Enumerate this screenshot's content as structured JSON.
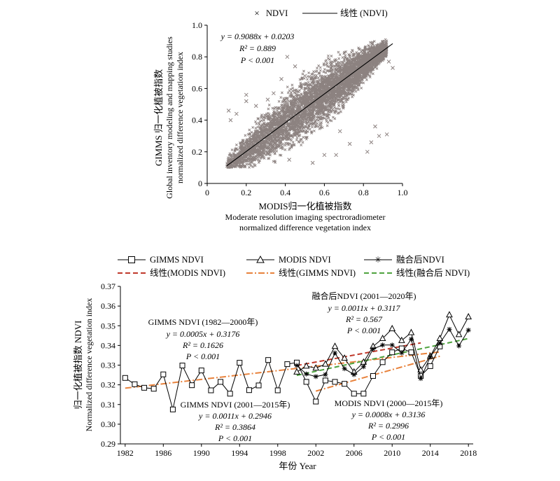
{
  "chart_data": [
    {
      "type": "scatter",
      "legend": {
        "placement": "top-center",
        "entries": [
          "NDVI",
          "线性 (NDVI)"
        ]
      },
      "xlabel": [
        "MODIS归一化植被指数",
        "Moderate resolution imaging spectroradiometer",
        "normalized difference vegetation index"
      ],
      "ylabel": [
        "GIMMS 归一化植被指数",
        "Global inventory modeling and mapping studies",
        "normalized difference vegetation index"
      ],
      "xlim": [
        0,
        1.0
      ],
      "ylim": [
        0,
        1.0
      ],
      "xticks": [
        {
          "v": 0,
          "label": "0"
        },
        {
          "v": 0.2,
          "label": "0.2"
        },
        {
          "v": 0.4,
          "label": "0.4"
        },
        {
          "v": 0.6,
          "label": "0.6"
        },
        {
          "v": 0.8,
          "label": "0.8"
        },
        {
          "v": 1.0,
          "label": "1.0"
        }
      ],
      "yticks": [
        {
          "v": 0,
          "label": "0"
        },
        {
          "v": 0.2,
          "label": "0.2"
        },
        {
          "v": 0.4,
          "label": "0.4"
        },
        {
          "v": 0.6,
          "label": "0.6"
        },
        {
          "v": 0.8,
          "label": "0.8"
        },
        {
          "v": 1.0,
          "label": "1.0"
        }
      ],
      "fit": {
        "slope": 0.9088,
        "intercept": 0.0203,
        "x_range": [
          0.1,
          0.95
        ]
      },
      "annotations": [
        "y = 0.9088x + 0.0203",
        "R² = 0.889",
        "P < 0.001"
      ],
      "marker_color": "#8c8280",
      "outliers": [
        [
          0.92,
          0.31
        ],
        [
          0.95,
          0.73
        ],
        [
          0.93,
          0.77
        ],
        [
          0.82,
          0.2
        ],
        [
          0.68,
          0.33
        ],
        [
          0.56,
          0.6
        ],
        [
          0.34,
          0.57
        ],
        [
          0.2,
          0.56
        ],
        [
          0.31,
          0.53
        ],
        [
          0.25,
          0.49
        ],
        [
          0.2,
          0.52
        ],
        [
          0.45,
          0.74
        ],
        [
          0.42,
          0.15
        ],
        [
          0.6,
          0.18
        ],
        [
          0.54,
          0.13
        ],
        [
          0.73,
          0.25
        ],
        [
          0.66,
          0.18
        ],
        [
          0.84,
          0.26
        ],
        [
          0.86,
          0.36
        ],
        [
          0.15,
          0.44
        ],
        [
          0.11,
          0.46
        ],
        [
          0.12,
          0.4
        ],
        [
          0.5,
          0.68
        ],
        [
          0.41,
          0.8
        ],
        [
          0.38,
          0.66
        ],
        [
          0.88,
          0.3
        ]
      ]
    },
    {
      "type": "line",
      "legend": {
        "placement": "top",
        "entries": [
          "GIMMS NDVI",
          "MODIS NDVI",
          "融合后NDVI",
          "线性(MODIS NDVI)",
          "线性(GIMMS NDVI)",
          "线性(融合后 NDVI)"
        ]
      },
      "xlabel": "年份 Year",
      "ylabel": [
        "归一化植被指数 NDVI",
        "Normalized difference vegetation index"
      ],
      "xlim": [
        1981.5,
        2018.5
      ],
      "ylim": [
        0.29,
        0.37
      ],
      "xticks": [
        1982,
        1986,
        1990,
        1994,
        1998,
        2002,
        2006,
        2010,
        2014,
        2018
      ],
      "yticks": [
        "0.29",
        "0.30",
        "0.31",
        "0.32",
        "0.33",
        "0.34",
        "0.35",
        "0.36",
        "0.37"
      ],
      "series": [
        {
          "name": "GIMMS NDVI",
          "x": [
            1982,
            1983,
            1984,
            1985,
            1986,
            1987,
            1988,
            1989,
            1990,
            1991,
            1992,
            1993,
            1994,
            1995,
            1996,
            1997,
            1998,
            1999,
            2000,
            2001,
            2002,
            2003,
            2004,
            2005,
            2006,
            2007,
            2008,
            2009,
            2010,
            2011,
            2012,
            2013,
            2014,
            2015
          ],
          "y": [
            0.3235,
            0.3203,
            0.3185,
            0.318,
            0.3253,
            0.3075,
            0.3298,
            0.3198,
            0.3273,
            0.3172,
            0.3215,
            0.3155,
            0.3312,
            0.3173,
            0.3197,
            0.3326,
            0.3172,
            0.3305,
            0.3313,
            0.3215,
            0.3115,
            0.3222,
            0.3215,
            0.3205,
            0.3155,
            0.3155,
            0.3245,
            0.3315,
            0.3365,
            0.3385,
            0.3365,
            0.3245,
            0.3295,
            0.3395
          ]
        },
        {
          "name": "MODIS NDVI",
          "x": [
            2000,
            2001,
            2002,
            2003,
            2004,
            2005,
            2006,
            2007,
            2008,
            2009,
            2010,
            2011,
            2012,
            2013,
            2014,
            2015,
            2016,
            2017,
            2018
          ],
          "y": [
            0.3265,
            0.3295,
            0.3285,
            0.3305,
            0.3395,
            0.3335,
            0.3265,
            0.3315,
            0.3395,
            0.3435,
            0.3485,
            0.3425,
            0.3465,
            0.3275,
            0.3345,
            0.3435,
            0.3555,
            0.3455,
            0.3545
          ]
        },
        {
          "name": "融合后NDVI",
          "x": [
            2000,
            2001,
            2002,
            2003,
            2004,
            2005,
            2006,
            2007,
            2008,
            2009,
            2010,
            2011,
            2012,
            2013,
            2014,
            2015,
            2016,
            2017,
            2018
          ],
          "y": [
            0.3298,
            0.3255,
            0.3242,
            0.3252,
            0.3362,
            0.3282,
            0.3252,
            0.3292,
            0.3382,
            0.3402,
            0.3402,
            0.3362,
            0.3432,
            0.3232,
            0.3342,
            0.3412,
            0.3482,
            0.3398,
            0.3478
          ]
        }
      ],
      "trend_lines": [
        {
          "name": "线性(MODIS NDVI)",
          "color": "#c0392b",
          "dash": "7,4",
          "x": [
            2000,
            2013
          ],
          "y": [
            0.3298,
            0.3413
          ]
        },
        {
          "name": "线性(GIMMS NDVI)",
          "color": "#e8823c",
          "dash": "9,3,2,3",
          "x": [
            1982,
            2015
          ],
          "y": [
            0.3183,
            0.3367
          ]
        },
        {
          "name": "线性(GIMMS NDVI)",
          "color": "#e8823c",
          "dash": "9,3,2,3",
          "x": [
            2002,
            2015
          ],
          "y": [
            0.3168,
            0.3345
          ]
        },
        {
          "name": "线性(融合后 NDVI)",
          "color": "#4fa33f",
          "dash": "7,4",
          "x": [
            2000,
            2018
          ],
          "y": [
            0.3248,
            0.3435
          ]
        }
      ],
      "annotations": [
        {
          "id": "gimms1",
          "lines": [
            "GIMMS  NDVI (1982—2000年)",
            "y = 0.0005x + 0.3176",
            "R² = 0.1626",
            "P < 0.001"
          ]
        },
        {
          "id": "fused",
          "lines": [
            "融合后NDVI (2001—2020年)",
            "y = 0.0011x + 0.3117",
            "R² = 0.567",
            "P < 0.001"
          ]
        },
        {
          "id": "gimms2",
          "lines": [
            "GIMMS  NDVI (2001—2015年)",
            "y = 0.0011x + 0.2946",
            "R² = 0.3864",
            "P < 0.001"
          ]
        },
        {
          "id": "modis",
          "lines": [
            "MODIS NDVI (2000—2015年)",
            "y = 0.0008x + 0.3136",
            "R² = 0.2996",
            "P < 0.001"
          ]
        }
      ],
      "colors": {
        "modis_trend": "#c0392b",
        "gimms_trend": "#e8823c",
        "fused_trend": "#4fa33f"
      }
    }
  ]
}
